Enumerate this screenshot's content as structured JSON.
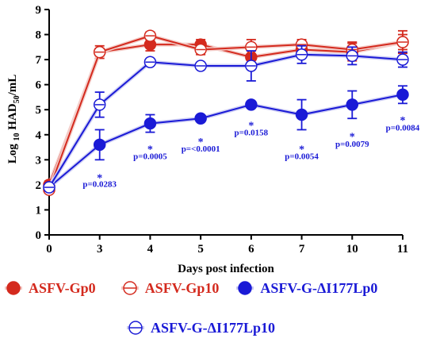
{
  "chart_data": {
    "type": "line",
    "xlabel": "Days post infection",
    "ylabel_main": "Log ",
    "ylabel_sub": "10",
    "ylabel_mid": " HAD",
    "ylabel_sub2": "50",
    "ylabel_end": "/mL",
    "categories": [
      "0",
      "3",
      "4",
      "5",
      "6",
      "7",
      "10",
      "11"
    ],
    "y_ticks": [
      "0",
      "1",
      "2",
      "3",
      "4",
      "5",
      "6",
      "7",
      "8",
      "9"
    ],
    "ylim": [
      0,
      9
    ],
    "grid": false,
    "legend_position": "bottom",
    "series": [
      {
        "name": "ASFV-Gp0",
        "color": "#d42a1e",
        "marker": "filled",
        "values": [
          2.0,
          7.3,
          7.6,
          7.6,
          7.1,
          7.4,
          7.3,
          7.7
        ],
        "errors": [
          0.15,
          0.25,
          0.25,
          0.2,
          0.25,
          0.2,
          0.35,
          0.45
        ]
      },
      {
        "name": "ASFV-Gp10",
        "color": "#d42a1e",
        "marker": "open",
        "values": [
          1.8,
          7.3,
          7.95,
          7.4,
          7.5,
          7.6,
          7.4,
          7.7
        ],
        "errors": [
          0.1,
          0.15,
          0.15,
          0.2,
          0.3,
          0.2,
          0.3,
          0.3
        ]
      },
      {
        "name": "ASFV-G-ΔI177Lp0",
        "color": "#1a1ad6",
        "marker": "filled",
        "values": [
          1.9,
          3.6,
          4.45,
          4.65,
          5.2,
          4.8,
          5.2,
          5.6
        ],
        "errors": [
          0.15,
          0.6,
          0.35,
          0.1,
          0.1,
          0.6,
          0.55,
          0.35
        ]
      },
      {
        "name": "ASFV-G-ΔI177Lp10",
        "color": "#1a1ad6",
        "marker": "open",
        "values": [
          1.9,
          5.2,
          6.9,
          6.75,
          6.75,
          7.2,
          7.15,
          7.0
        ],
        "errors": [
          0.1,
          0.5,
          0.1,
          0.1,
          0.6,
          0.35,
          0.35,
          0.3
        ]
      }
    ],
    "annotations": [
      {
        "x": "3",
        "star": "*",
        "text": "p=0.0283",
        "y_star": 2.45,
        "y_text": 2.05
      },
      {
        "x": "4",
        "star": "*",
        "text": "p=0.0005",
        "y_star": 3.6,
        "y_text": 3.15
      },
      {
        "x": "5",
        "star": "*",
        "text": "p=<0.0001",
        "y_star": 3.9,
        "y_text": 3.45
      },
      {
        "x": "6",
        "star": "*",
        "text": "p=0.0158",
        "y_star": 4.55,
        "y_text": 4.1
      },
      {
        "x": "7",
        "star": "*",
        "text": "p=0.0054",
        "y_star": 3.6,
        "y_text": 3.15
      },
      {
        "x": "10",
        "star": "*",
        "text": "p=0.0079",
        "y_star": 4.1,
        "y_text": 3.65
      },
      {
        "x": "11",
        "star": "*",
        "text": "p=0.0084",
        "y_star": 4.75,
        "y_text": 4.3
      }
    ]
  }
}
